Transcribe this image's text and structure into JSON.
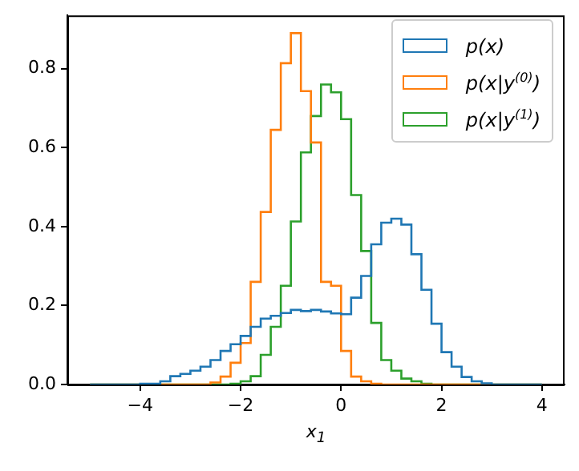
{
  "chart_data": {
    "type": "histogram",
    "xlabel": "x$_{1}$",
    "bins": [
      -5,
      -4.8,
      -4.6,
      -4.4,
      -4.2,
      -4,
      -3.8,
      -3.6,
      -3.4,
      -3.2,
      -3,
      -2.8,
      -2.6,
      -2.4,
      -2.2,
      -2,
      -1.8,
      -1.6,
      -1.4,
      -1.2,
      -1,
      -0.8,
      -0.6,
      -0.4,
      -0.2,
      0,
      0.2,
      0.4,
      0.6,
      0.8,
      1,
      1.2,
      1.4,
      1.6,
      1.8,
      2,
      2.2,
      2.4,
      2.6,
      2.8,
      3,
      3.2,
      3.4,
      3.6,
      3.8,
      4
    ],
    "series": [
      {
        "name": "p(x)",
        "color": "#1f77b4",
        "values": [
          0,
          0,
          0,
          0,
          0,
          0.002,
          0.002,
          0.008,
          0.021,
          0.027,
          0.035,
          0.045,
          0.062,
          0.085,
          0.102,
          0.123,
          0.146,
          0.167,
          0.174,
          0.181,
          0.189,
          0.186,
          0.189,
          0.185,
          0.18,
          0.178,
          0.22,
          0.275,
          0.355,
          0.41,
          0.42,
          0.405,
          0.33,
          0.24,
          0.154,
          0.082,
          0.045,
          0.019,
          0.008,
          0.003,
          0,
          0,
          0,
          0,
          0
        ]
      },
      {
        "name": "p(x|y$^{(0)}$)",
        "color": "#ff7f0e",
        "values": [
          0,
          0,
          0,
          0,
          0,
          0,
          0,
          0,
          0,
          0,
          0,
          0,
          0.005,
          0.02,
          0.055,
          0.105,
          0.26,
          0.437,
          0.645,
          0.814,
          0.89,
          0.743,
          0.613,
          0.26,
          0.25,
          0.085,
          0.02,
          0.008,
          0.002,
          0,
          0,
          0,
          0,
          0,
          0,
          0,
          0,
          0,
          0,
          0,
          0,
          0,
          0,
          0,
          0
        ]
      },
      {
        "name": "p(x|y$^{(1)}$)",
        "color": "#2ca02c",
        "values": [
          0,
          0,
          0,
          0,
          0,
          0,
          0,
          0,
          0,
          0,
          0,
          0,
          0,
          0,
          0.002,
          0.008,
          0.021,
          0.075,
          0.146,
          0.25,
          0.413,
          0.588,
          0.68,
          0.76,
          0.74,
          0.672,
          0.48,
          0.338,
          0.156,
          0.062,
          0.035,
          0.015,
          0.008,
          0.002,
          0,
          0,
          0,
          0,
          0,
          0,
          0,
          0,
          0,
          0,
          0
        ]
      }
    ],
    "xlim": [
      -5.45,
      4.45
    ],
    "xticks": [
      {
        "value": -4,
        "label": "−4"
      },
      {
        "value": -2,
        "label": "−2"
      },
      {
        "value": 0,
        "label": "0"
      },
      {
        "value": 2,
        "label": "2"
      },
      {
        "value": 4,
        "label": "4"
      }
    ],
    "ylim": [
      0,
      0.935
    ],
    "yticks": [
      {
        "value": 0,
        "label": "0.0"
      },
      0.2,
      0.4,
      0.6,
      0.8
    ],
    "legend": "top right",
    "grid": false
  }
}
